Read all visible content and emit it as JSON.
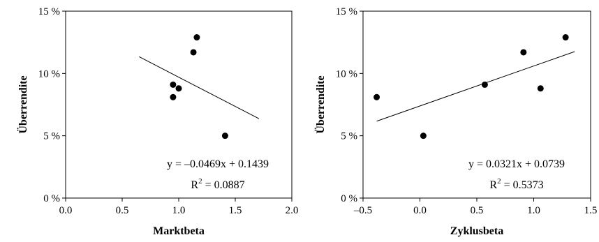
{
  "chart_data": [
    {
      "type": "scatter",
      "xlabel": "Marktbeta",
      "ylabel": "Überrendite",
      "xlim": [
        0.0,
        2.0
      ],
      "ylim": [
        0.0,
        0.15
      ],
      "xticks": [
        0.0,
        0.5,
        1.0,
        1.5,
        2.0
      ],
      "xtick_labels": [
        "0.0",
        "0.5",
        "1.0",
        "1.5",
        "2.0"
      ],
      "yticks": [
        0.0,
        0.05,
        0.1,
        0.15
      ],
      "ytick_labels": [
        "0 %",
        "5 %",
        "10 %",
        "15 %"
      ],
      "points": [
        {
          "x": 0.95,
          "y": 0.091
        },
        {
          "x": 0.95,
          "y": 0.081
        },
        {
          "x": 1.0,
          "y": 0.088
        },
        {
          "x": 1.13,
          "y": 0.117
        },
        {
          "x": 1.16,
          "y": 0.129
        },
        {
          "x": 1.41,
          "y": 0.05
        }
      ],
      "trendline": {
        "slope": -0.0469,
        "intercept": 0.1439,
        "x_range": [
          0.65,
          1.71
        ]
      },
      "equation": "y = –0.0469x + 0.1439",
      "r2_prefix": "R",
      "r2_exp": "2",
      "r2_value": " = 0.0887",
      "grid": false
    },
    {
      "type": "scatter",
      "xlabel": "Zyklusbeta",
      "ylabel": "Überrendite",
      "xlim": [
        -0.5,
        1.5
      ],
      "ylim": [
        0.0,
        0.15
      ],
      "xticks": [
        -0.5,
        0.0,
        0.5,
        1.0,
        1.5
      ],
      "xtick_labels": [
        "–0.5",
        "0.0",
        "0.5",
        "1.0",
        "1.5"
      ],
      "yticks": [
        0.0,
        0.05,
        0.1,
        0.15
      ],
      "ytick_labels": [
        "0 %",
        "5 %",
        "10 %",
        "15 %"
      ],
      "points": [
        {
          "x": -0.38,
          "y": 0.081
        },
        {
          "x": 0.03,
          "y": 0.05
        },
        {
          "x": 0.57,
          "y": 0.091
        },
        {
          "x": 0.91,
          "y": 0.117
        },
        {
          "x": 1.06,
          "y": 0.088
        },
        {
          "x": 1.28,
          "y": 0.129
        }
      ],
      "trendline": {
        "slope": 0.0321,
        "intercept": 0.0739,
        "x_range": [
          -0.38,
          1.36
        ]
      },
      "equation": "y = 0.0321x + 0.0739",
      "r2_prefix": "R",
      "r2_exp": "2",
      "r2_value": " = 0.5373",
      "grid": false
    }
  ]
}
